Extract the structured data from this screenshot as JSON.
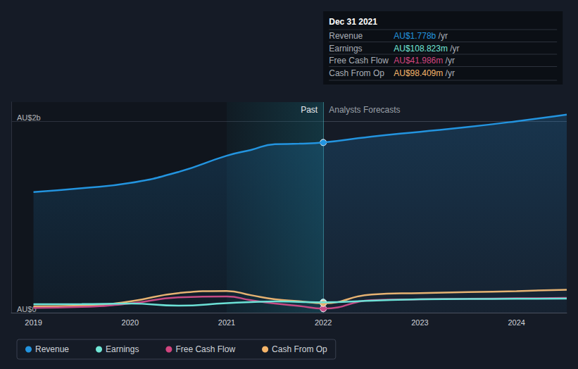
{
  "chart_data": {
    "type": "line",
    "x": [
      2019,
      2019.5,
      2020,
      2020.5,
      2021,
      2021.25,
      2021.5,
      2021.75,
      2022,
      2022.5,
      2023,
      2023.5,
      2024,
      2024.52
    ],
    "series": [
      {
        "name": "Revenue",
        "color": "#2394df",
        "values": [
          1.26,
          1.3,
          1.355,
          1.47,
          1.64,
          1.7,
          1.76,
          1.765,
          1.778,
          1.84,
          1.89,
          1.94,
          2.0,
          2.07
        ]
      },
      {
        "name": "Earnings",
        "color": "#71e7d6",
        "values": [
          0.088,
          0.09,
          0.095,
          0.073,
          0.1,
          0.11,
          0.117,
          0.113,
          0.109,
          0.125,
          0.14,
          0.143,
          0.145,
          0.147
        ]
      },
      {
        "name": "Free Cash Flow",
        "color": "#d1457f",
        "values": [
          0.05,
          0.06,
          0.095,
          0.16,
          0.17,
          0.13,
          0.095,
          0.07,
          0.042,
          0.13,
          0.14,
          0.145,
          0.15,
          0.154
        ]
      },
      {
        "name": "Cash From Op",
        "color": "#f5b56a",
        "values": [
          0.066,
          0.073,
          0.117,
          0.205,
          0.227,
          0.183,
          0.14,
          0.12,
          0.098,
          0.19,
          0.205,
          0.215,
          0.225,
          0.24
        ]
      }
    ],
    "xlim": [
      2018.77,
      2024.52
    ],
    "xticks": [
      2019,
      2020,
      2021,
      2022,
      2023,
      2024
    ],
    "ylim": [
      0,
      2.2
    ],
    "yticks": [
      {
        "value": 0,
        "label": "AU$0"
      },
      {
        "value": 2,
        "label": "AU$2b"
      }
    ],
    "grid": true,
    "legend": "bottom",
    "annotations": {
      "past": {
        "text": "Past",
        "from": 2021,
        "to": 2022
      },
      "forecast": {
        "text": "Analysts Forecasts",
        "from": 2022
      },
      "tooltip": {
        "date": "Dec 31 2021",
        "x": 2022,
        "rows": [
          {
            "label": "Revenue",
            "value": "AU$1.778b",
            "unit": "/yr"
          },
          {
            "label": "Earnings",
            "value": "AU$108.823m",
            "unit": "/yr"
          },
          {
            "label": "Free Cash Flow",
            "value": "AU$41.986m",
            "unit": "/yr"
          },
          {
            "label": "Cash From Op",
            "value": "AU$98.409m",
            "unit": "/yr"
          }
        ]
      }
    }
  }
}
